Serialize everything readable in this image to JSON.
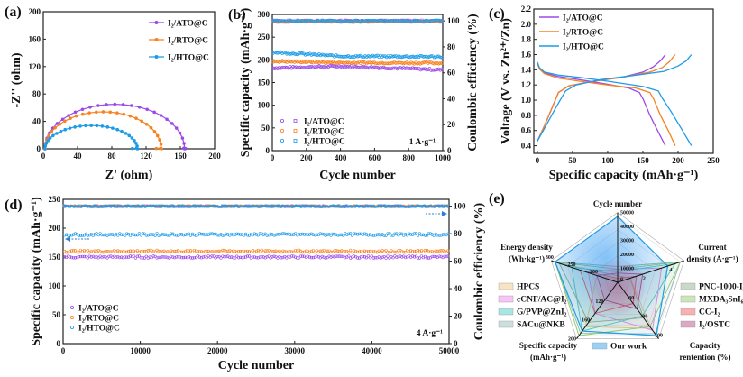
{
  "colors": {
    "ATO": "#9b4be8",
    "RTO": "#f7821e",
    "HTO": "#1c9ce8"
  },
  "chart_data": [
    {
      "id": "a",
      "panel_label": "(a)",
      "type": "line",
      "title": "",
      "xlabel": "Z' (ohm)",
      "ylabel": "-Z'' (ohm)",
      "xlim": [
        0,
        200
      ],
      "ylim": [
        0,
        200
      ],
      "xticks": [
        0,
        40,
        80,
        120,
        160,
        200
      ],
      "yticks": [
        0,
        40,
        80,
        120,
        160,
        200
      ],
      "legend_position": "top-right",
      "series": [
        {
          "name": "I₂/ATO@C",
          "color_key": "ATO",
          "description": "semicircle",
          "x_start": 2,
          "x_end": 163,
          "peak_y": 65,
          "tail_end_x": 166
        },
        {
          "name": "I₂/RTO@C",
          "color_key": "RTO",
          "description": "semicircle",
          "x_start": 2,
          "x_end": 136,
          "peak_y": 54,
          "tail_end_x": 132
        },
        {
          "name": "I₂/HTO@C",
          "color_key": "HTO",
          "description": "semicircle",
          "x_start": 2,
          "x_end": 108,
          "peak_y": 34,
          "tail_end_x": 104
        }
      ]
    },
    {
      "id": "b",
      "panel_label": "(b)",
      "type": "scatter",
      "xlabel": "Cycle number",
      "ylabel": "Specific capacity (mAh·g⁻¹)",
      "y2label": "Coulombic efficiency (%)",
      "xlim": [
        0,
        1000
      ],
      "ylim": [
        0,
        300
      ],
      "y2lim": [
        0,
        105
      ],
      "xticks": [
        0,
        200,
        400,
        600,
        800,
        1000
      ],
      "yticks": [
        0,
        50,
        100,
        150,
        200,
        250,
        300
      ],
      "y2ticks": [
        0,
        20,
        40,
        60,
        80,
        100
      ],
      "annotation": "1 A·g⁻¹",
      "legend_position": "bottom-left",
      "series": [
        {
          "name": "I₂/ATO@C",
          "color_key": "ATO",
          "capacity_start": 182,
          "capacity_end": 178,
          "capacity_mid": 186,
          "efficiency": 100
        },
        {
          "name": "I₂/RTO@C",
          "color_key": "RTO",
          "capacity_start": 197,
          "capacity_end": 193,
          "capacity_mid": 194,
          "efficiency": 99.5
        },
        {
          "name": "I₂/HTO@C",
          "color_key": "HTO",
          "capacity_start": 217,
          "capacity_end": 207,
          "capacity_mid": 208,
          "efficiency": 100
        }
      ]
    },
    {
      "id": "c",
      "panel_label": "(c)",
      "type": "line",
      "xlabel": "Specific capacity (mAh·g⁻¹)",
      "ylabel": "Voltage (V vs. Zn²⁺/Zn)",
      "xlim": [
        -5,
        250
      ],
      "ylim": [
        0.3,
        2.2
      ],
      "xticks": [
        0,
        50,
        100,
        150,
        200,
        250
      ],
      "yticks": [
        0.4,
        0.6,
        0.8,
        1.0,
        1.2,
        1.4,
        1.6,
        1.8,
        2.0,
        2.2
      ],
      "legend_position": "top-left",
      "series": [
        {
          "name": "I₂/ATO@C",
          "color_key": "ATO",
          "discharge": [
            [
              0,
              1.5
            ],
            [
              3,
              1.42
            ],
            [
              10,
              1.36
            ],
            [
              30,
              1.31
            ],
            [
              60,
              1.27
            ],
            [
              100,
              1.21
            ],
            [
              130,
              1.16
            ],
            [
              145,
              1.1
            ],
            [
              150,
              1.02
            ],
            [
              160,
              0.8
            ],
            [
              172,
              0.58
            ],
            [
              182,
              0.4
            ]
          ],
          "charge": [
            [
              0,
              0.46
            ],
            [
              10,
              0.66
            ],
            [
              20,
              0.88
            ],
            [
              30,
              1.1
            ],
            [
              45,
              1.19
            ],
            [
              80,
              1.25
            ],
            [
              120,
              1.3
            ],
            [
              150,
              1.37
            ],
            [
              165,
              1.44
            ],
            [
              175,
              1.52
            ],
            [
              182,
              1.6
            ]
          ]
        },
        {
          "name": "I₂/RTO@C",
          "color_key": "RTO",
          "discharge": [
            [
              0,
              1.49
            ],
            [
              3,
              1.41
            ],
            [
              10,
              1.35
            ],
            [
              30,
              1.29
            ],
            [
              60,
              1.25
            ],
            [
              100,
              1.2
            ],
            [
              140,
              1.16
            ],
            [
              160,
              1.1
            ],
            [
              165,
              1.02
            ],
            [
              175,
              0.8
            ],
            [
              186,
              0.6
            ],
            [
              196,
              0.4
            ]
          ],
          "charge": [
            [
              0,
              0.46
            ],
            [
              10,
              0.66
            ],
            [
              20,
              0.88
            ],
            [
              30,
              1.1
            ],
            [
              45,
              1.19
            ],
            [
              80,
              1.25
            ],
            [
              120,
              1.3
            ],
            [
              160,
              1.37
            ],
            [
              178,
              1.43
            ],
            [
              188,
              1.51
            ],
            [
              196,
              1.6
            ]
          ]
        },
        {
          "name": "I₂/HTO@C",
          "color_key": "HTO",
          "discharge": [
            [
              0,
              1.5
            ],
            [
              3,
              1.43
            ],
            [
              10,
              1.37
            ],
            [
              30,
              1.33
            ],
            [
              60,
              1.3
            ],
            [
              100,
              1.25
            ],
            [
              150,
              1.18
            ],
            [
              172,
              1.12
            ],
            [
              178,
              1.02
            ],
            [
              190,
              0.85
            ],
            [
              205,
              0.62
            ],
            [
              219,
              0.4
            ]
          ],
          "charge": [
            [
              0,
              0.46
            ],
            [
              12,
              0.66
            ],
            [
              25,
              0.88
            ],
            [
              40,
              1.12
            ],
            [
              55,
              1.2
            ],
            [
              90,
              1.27
            ],
            [
              140,
              1.33
            ],
            [
              180,
              1.38
            ],
            [
              200,
              1.45
            ],
            [
              212,
              1.52
            ],
            [
              219,
              1.6
            ]
          ]
        }
      ]
    },
    {
      "id": "d",
      "panel_label": "(d)",
      "type": "scatter",
      "xlabel": "Cycle number",
      "ylabel": "Specific capacity (mAh·g⁻¹)",
      "y2label": "Coulombic efficiency (%)",
      "xlim": [
        0,
        50000
      ],
      "ylim": [
        0,
        250
      ],
      "y2lim": [
        0,
        105
      ],
      "xticks": [
        0,
        10000,
        20000,
        30000,
        40000,
        50000
      ],
      "yticks": [
        0,
        50,
        100,
        150,
        200,
        250
      ],
      "y2ticks": [
        0,
        20,
        40,
        60,
        80,
        100
      ],
      "annotation": "4 A·g⁻¹",
      "legend_position": "bottom-left",
      "series": [
        {
          "name": "I₂/ATO@C",
          "color_key": "ATO",
          "capacity": 150,
          "efficiency": 100
        },
        {
          "name": "I₂/RTO@C",
          "color_key": "RTO",
          "capacity": 160,
          "efficiency": 100
        },
        {
          "name": "I₂/HTO@C",
          "color_key": "HTO",
          "capacity": 189,
          "efficiency": 100
        }
      ]
    },
    {
      "id": "e",
      "panel_label": "(e)",
      "type": "radar",
      "axes": [
        {
          "label": [
            "Cycle number"
          ],
          "range": [
            0,
            50000
          ],
          "ticks": [
            0,
            10000,
            20000,
            30000,
            40000,
            50000
          ]
        },
        {
          "label": [
            "Current",
            "density (A·g⁻¹)"
          ],
          "range": [
            0,
            5
          ],
          "ticks": [
            2,
            4
          ]
        },
        {
          "label": [
            "Capacity",
            "rentention (%)"
          ],
          "range": [
            70,
            100
          ],
          "ticks": [
            80,
            90,
            100
          ]
        },
        {
          "label": [
            "Specific capacity",
            "(mAh·g⁻¹)"
          ],
          "range": [
            80,
            200
          ],
          "ticks": [
            120,
            160,
            200
          ]
        },
        {
          "label": [
            "Energy density",
            "(Wh·kg⁻¹)"
          ],
          "range": [
            150,
            300
          ],
          "ticks": [
            200,
            250,
            300
          ]
        }
      ],
      "series": [
        {
          "name": "HPCS",
          "color": "#f2c27a",
          "values": [
            2000,
            1,
            96,
            180,
            200
          ]
        },
        {
          "name": "cCNF/AC@I₂",
          "color": "#f07af0",
          "values": [
            10000,
            3.5,
            97,
            150,
            220
          ]
        },
        {
          "name": "G/PVP@ZnI₂",
          "color": "#3fc8c8",
          "values": [
            8000,
            4.6,
            89,
            190,
            260
          ]
        },
        {
          "name": "SACu@NKB",
          "color": "#8fb8b8",
          "values": [
            12000,
            5,
            99,
            195,
            300
          ]
        },
        {
          "name": "PNC-1000-I₂",
          "color": "#8aa88a",
          "values": [
            5000,
            1,
            90,
            170,
            290
          ]
        },
        {
          "name": "MXDA₃SnI₆",
          "color": "#8fc86a",
          "values": [
            10000,
            5,
            95,
            200,
            300
          ]
        },
        {
          "name": "CC-I₂",
          "color": "#f05050",
          "values": [
            3000,
            1.5,
            82,
            150,
            240
          ]
        },
        {
          "name": "I₂/OSTC",
          "color": "#b0407a",
          "values": [
            7000,
            2,
            85,
            120,
            200
          ]
        },
        {
          "name": "Our work",
          "color": "#1c9ce8",
          "values": [
            50000,
            4,
            100,
            190,
            300
          ]
        }
      ],
      "legend_left": [
        "HPCS",
        "cCNF/AC@I₂",
        "G/PVP@ZnI₂",
        "SACu@NKB"
      ],
      "legend_right": [
        "PNC-1000-I₂",
        "MXDA₃SnI₆",
        "CC-I₂",
        "I₂/OSTC"
      ],
      "legend_bottom": [
        "Our work"
      ]
    }
  ]
}
